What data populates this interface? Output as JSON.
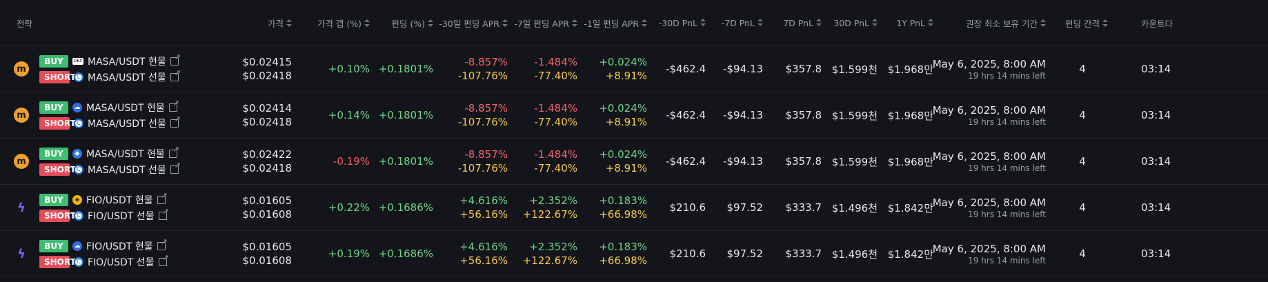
{
  "headers": [
    "전략",
    "가격",
    "가격 갭 (%)",
    "펀딩 (%)",
    "-30일 펀딩 APR",
    "-7일 펀딩 APR",
    "-1일 펀딩 APR",
    "-30D PnL",
    "-7D PnL",
    "7D PnL",
    "30D PnL",
    "1Y PnL",
    "권장 최소 보유 기간",
    "펀딩 간격",
    "카운트다"
  ],
  "rows": [
    {
      "coin": "m",
      "coin_type": "masa",
      "buy_badge": "BUY",
      "short_badge": "SHORT",
      "buy_ex": "a",
      "short_ex": "e",
      "buy_pair": "MASA/USDT 현물",
      "short_pair": "MASA/USDT 선물",
      "price_buy": "$0.02415",
      "price_short": "$0.02418",
      "gap": "+0.10%",
      "gap_sign": "pos",
      "funding": "+0.1801%",
      "apr30_a": "-8.857%",
      "apr30_b": "-107.76%",
      "apr30_a_sign": "neg",
      "apr7_a": "-1.484%",
      "apr7_b": "-77.40%",
      "apr7_a_sign": "neg",
      "apr1_a": "+0.024%",
      "apr1_b": "+8.91%",
      "pnl_m30": "-$462.4",
      "pnl_m7": "-$94.13",
      "pnl_7": "$357.8",
      "pnl_30": "$1.599천",
      "pnl_1y": "$1.968만",
      "hold_date": "May 6, 2025, 8:00 AM",
      "hold_left": "19 hrs 14 mins left",
      "interval": "4",
      "countdown": "03:14"
    },
    {
      "coin": "m",
      "coin_type": "masa",
      "buy_badge": "BUY",
      "short_badge": "SHORT",
      "buy_ex": "b",
      "short_ex": "e",
      "buy_pair": "MASA/USDT 현물",
      "short_pair": "MASA/USDT 선물",
      "price_buy": "$0.02414",
      "price_short": "$0.02418",
      "gap": "+0.14%",
      "gap_sign": "pos",
      "funding": "+0.1801%",
      "apr30_a": "-8.857%",
      "apr30_b": "-107.76%",
      "apr30_a_sign": "neg",
      "apr7_a": "-1.484%",
      "apr7_b": "-77.40%",
      "apr7_a_sign": "neg",
      "apr1_a": "+0.024%",
      "apr1_b": "+8.91%",
      "pnl_m30": "-$462.4",
      "pnl_m7": "-$94.13",
      "pnl_7": "$357.8",
      "pnl_30": "$1.599천",
      "pnl_1y": "$1.968만",
      "hold_date": "May 6, 2025, 8:00 AM",
      "hold_left": "19 hrs 14 mins left",
      "interval": "4",
      "countdown": "03:14"
    },
    {
      "coin": "m",
      "coin_type": "masa",
      "buy_badge": "BUY",
      "short_badge": "SHORT",
      "buy_ex": "c",
      "short_ex": "e",
      "buy_pair": "MASA/USDT 현물",
      "short_pair": "MASA/USDT 선물",
      "price_buy": "$0.02422",
      "price_short": "$0.02418",
      "gap": "-0.19%",
      "gap_sign": "neg",
      "funding": "+0.1801%",
      "apr30_a": "-8.857%",
      "apr30_b": "-107.76%",
      "apr30_a_sign": "neg",
      "apr7_a": "-1.484%",
      "apr7_b": "-77.40%",
      "apr7_a_sign": "neg",
      "apr1_a": "+0.024%",
      "apr1_b": "+8.91%",
      "pnl_m30": "-$462.4",
      "pnl_m7": "-$94.13",
      "pnl_7": "$357.8",
      "pnl_30": "$1.599천",
      "pnl_1y": "$1.968만",
      "hold_date": "May 6, 2025, 8:00 AM",
      "hold_left": "19 hrs 14 mins left",
      "interval": "4",
      "countdown": "03:14"
    },
    {
      "coin": "ϟ",
      "coin_type": "fio",
      "buy_badge": "BUY",
      "short_badge": "SHORT",
      "buy_ex": "d",
      "short_ex": "e",
      "buy_pair": "FIO/USDT 현물",
      "short_pair": "FIO/USDT 선물",
      "price_buy": "$0.01605",
      "price_short": "$0.01608",
      "gap": "+0.22%",
      "gap_sign": "pos",
      "funding": "+0.1686%",
      "apr30_a": "+4.616%",
      "apr30_b": "+56.16%",
      "apr30_a_sign": "pos",
      "apr7_a": "+2.352%",
      "apr7_b": "+122.67%",
      "apr7_a_sign": "pos",
      "apr1_a": "+0.183%",
      "apr1_b": "+66.98%",
      "pnl_m30": "$210.6",
      "pnl_m7": "$97.52",
      "pnl_7": "$333.7",
      "pnl_30": "$1.496천",
      "pnl_1y": "$1.842만",
      "hold_date": "May 6, 2025, 8:00 AM",
      "hold_left": "19 hrs 14 mins left",
      "interval": "4",
      "countdown": "03:14"
    },
    {
      "coin": "ϟ",
      "coin_type": "fio",
      "buy_badge": "BUY",
      "short_badge": "SHORT",
      "buy_ex": "b",
      "short_ex": "e",
      "buy_pair": "FIO/USDT 현물",
      "short_pair": "FIO/USDT 선물",
      "price_buy": "$0.01605",
      "price_short": "$0.01608",
      "gap": "+0.19%",
      "gap_sign": "pos",
      "funding": "+0.1686%",
      "apr30_a": "+4.616%",
      "apr30_b": "+56.16%",
      "apr30_a_sign": "pos",
      "apr7_a": "+2.352%",
      "apr7_b": "+122.67%",
      "apr7_a_sign": "pos",
      "apr1_a": "+0.183%",
      "apr1_b": "+66.98%",
      "pnl_m30": "$210.6",
      "pnl_m7": "$97.52",
      "pnl_7": "$333.7",
      "pnl_30": "$1.496천",
      "pnl_1y": "$1.842만",
      "hold_date": "May 6, 2025, 8:00 AM",
      "hold_left": "19 hrs 14 mins left",
      "interval": "4",
      "countdown": "03:14"
    }
  ],
  "colors": {
    "positive": "#6fd68a",
    "negative": "#f2616c",
    "yellow": "#f7c948",
    "buy": "#3fbb72",
    "short": "#e64c5a",
    "background": "#13151a"
  }
}
